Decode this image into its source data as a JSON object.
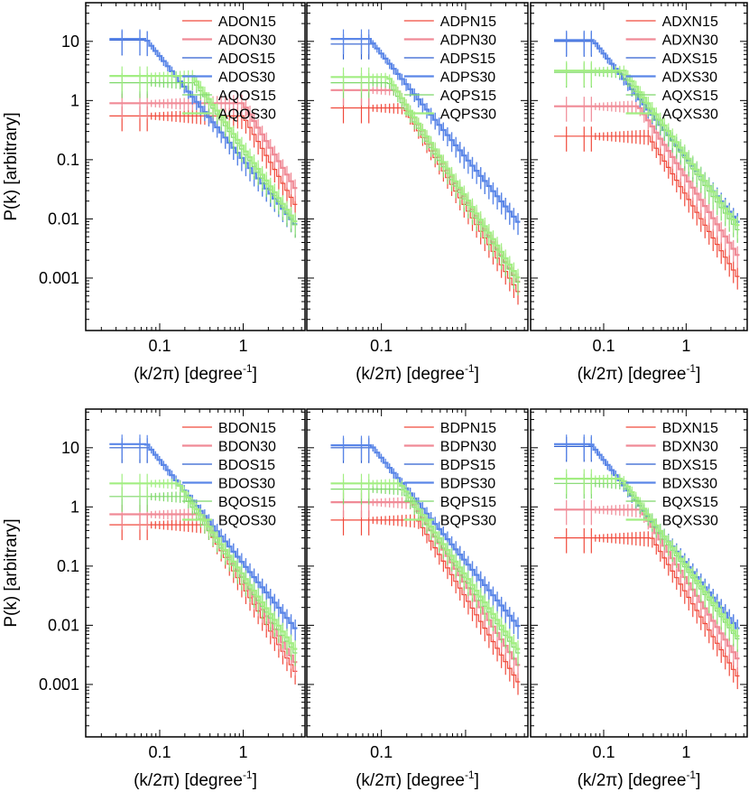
{
  "figure": {
    "ylabel": "P(k) [arbitrary]",
    "xlabel_main": "(k/2π) [degree",
    "xlabel_sup": "-1",
    "xlabel_close": "]"
  },
  "colors": {
    "N15": "#f04a3c",
    "N30": "#f08a96",
    "S15": "#2f5fd0",
    "S30": "#5a86e8",
    "Q15": "#7ed86a",
    "Q30": "#a2ee82"
  },
  "chart_data": [
    {
      "type": "line",
      "panel": "top-left",
      "xscale": "log",
      "yscale": "log",
      "xlim": [
        0.013,
        5.5
      ],
      "ylim": [
        0.00013,
        45
      ],
      "xticks": [
        {
          "v": 0.1,
          "label": "0.1"
        },
        {
          "v": 1,
          "label": "1"
        }
      ],
      "yticks": [
        {
          "v": 10,
          "label": "10"
        },
        {
          "v": 1,
          "label": "1"
        },
        {
          "v": 0.1,
          "label": "0.1"
        },
        {
          "v": 0.01,
          "label": "0.01"
        },
        {
          "v": 0.001,
          "label": "0.001"
        }
      ],
      "legend": "top-right",
      "series": [
        {
          "name": "ADON15",
          "key": "N15",
          "amp": 0.55,
          "low": 0.55,
          "slope": 2.4
        },
        {
          "name": "ADON30",
          "key": "N30",
          "amp": 0.9,
          "low": 0.9,
          "slope": 2.3
        },
        {
          "name": "ADOS15",
          "key": "S15",
          "amp": 0.1,
          "low": 10.5,
          "slope": 1.75
        },
        {
          "name": "ADOS30",
          "key": "S30",
          "amp": 0.1,
          "low": 11,
          "slope": 1.75
        },
        {
          "name": "AQOS15",
          "key": "Q15",
          "amp": 0.14,
          "low": 2.0,
          "slope": 2.0
        },
        {
          "name": "AQOS30",
          "key": "Q30",
          "amp": 0.16,
          "low": 2.6,
          "slope": 2.0
        }
      ]
    },
    {
      "type": "line",
      "panel": "top-center",
      "xscale": "log",
      "yscale": "log",
      "xlim": [
        0.013,
        5.5
      ],
      "ylim": [
        0.00013,
        45
      ],
      "xticks": [
        {
          "v": 0.1,
          "label": "0.1"
        }
      ],
      "yticks": [],
      "legend": "top-right",
      "series": [
        {
          "name": "ADPN15",
          "key": "N15",
          "amp": 0.016,
          "low": 0.75,
          "slope": 2.3
        },
        {
          "name": "ADPN30",
          "key": "N30",
          "amp": 0.022,
          "low": 1.5,
          "slope": 2.25
        },
        {
          "name": "ADPS15",
          "key": "S15",
          "amp": 0.11,
          "low": 9,
          "slope": 1.75
        },
        {
          "name": "ADPS30",
          "key": "S30",
          "amp": 0.11,
          "low": 11,
          "slope": 1.75
        },
        {
          "name": "AQPS15",
          "key": "Q15",
          "amp": 0.02,
          "low": 2.0,
          "slope": 2.2
        },
        {
          "name": "AQPS30",
          "key": "Q30",
          "amp": 0.024,
          "low": 2.5,
          "slope": 2.2
        }
      ]
    },
    {
      "type": "line",
      "panel": "top-right",
      "xscale": "log",
      "yscale": "log",
      "xlim": [
        0.013,
        5.5
      ],
      "ylim": [
        0.00013,
        45
      ],
      "xticks": [
        {
          "v": 0.1,
          "label": "0.1"
        },
        {
          "v": 1,
          "label": "1"
        }
      ],
      "yticks": [],
      "legend": "top-right",
      "series": [
        {
          "name": "ADXN15",
          "key": "N15",
          "amp": 0.025,
          "low": 0.25,
          "slope": 2.2
        },
        {
          "name": "ADXN30",
          "key": "N30",
          "amp": 0.05,
          "low": 0.8,
          "slope": 2.1
        },
        {
          "name": "ADXS15",
          "key": "S15",
          "amp": 0.11,
          "low": 10,
          "slope": 1.75
        },
        {
          "name": "ADXS30",
          "key": "S30",
          "amp": 0.11,
          "low": 10.5,
          "slope": 1.75
        },
        {
          "name": "AQXS15",
          "key": "Q15",
          "amp": 0.1,
          "low": 3.0,
          "slope": 1.9
        },
        {
          "name": "AQXS30",
          "key": "Q30",
          "amp": 0.12,
          "low": 3.2,
          "slope": 1.9
        }
      ]
    },
    {
      "type": "line",
      "panel": "bottom-left",
      "xscale": "log",
      "yscale": "log",
      "xlim": [
        0.013,
        5.5
      ],
      "ylim": [
        0.00013,
        45
      ],
      "xticks": [
        {
          "v": 0.1,
          "label": "0.1"
        },
        {
          "v": 1,
          "label": "1"
        }
      ],
      "yticks": [
        {
          "v": 10,
          "label": "10"
        },
        {
          "v": 1,
          "label": "1"
        },
        {
          "v": 0.1,
          "label": "0.1"
        },
        {
          "v": 0.01,
          "label": "0.01"
        },
        {
          "v": 0.001,
          "label": "0.001"
        }
      ],
      "legend": "top-right",
      "series": [
        {
          "name": "BDON15",
          "key": "N15",
          "amp": 0.045,
          "low": 0.5,
          "slope": 2.3
        },
        {
          "name": "BDON30",
          "key": "N30",
          "amp": 0.06,
          "low": 0.75,
          "slope": 2.25
        },
        {
          "name": "BDOS15",
          "key": "S15",
          "amp": 0.11,
          "low": 10,
          "slope": 1.75
        },
        {
          "name": "BDOS30",
          "key": "S30",
          "amp": 0.11,
          "low": 11.5,
          "slope": 1.75
        },
        {
          "name": "BQOS15",
          "key": "Q15",
          "amp": 0.06,
          "low": 1.5,
          "slope": 2.0
        },
        {
          "name": "BQOS30",
          "key": "Q30",
          "amp": 0.07,
          "low": 2.5,
          "slope": 2.0
        }
      ]
    },
    {
      "type": "line",
      "panel": "bottom-center",
      "xscale": "log",
      "yscale": "log",
      "xlim": [
        0.013,
        5.5
      ],
      "ylim": [
        0.00013,
        45
      ],
      "xticks": [
        {
          "v": 0.1,
          "label": "0.1"
        }
      ],
      "yticks": [],
      "legend": "top-right",
      "series": [
        {
          "name": "BDPN15",
          "key": "N15",
          "amp": 0.03,
          "low": 0.6,
          "slope": 2.3
        },
        {
          "name": "BDPN30",
          "key": "N30",
          "amp": 0.05,
          "low": 1.2,
          "slope": 2.2
        },
        {
          "name": "BDPS15",
          "key": "S15",
          "amp": 0.12,
          "low": 10,
          "slope": 1.75
        },
        {
          "name": "BDPS30",
          "key": "S30",
          "amp": 0.12,
          "low": 11,
          "slope": 1.75
        },
        {
          "name": "BQPS15",
          "key": "Q15",
          "amp": 0.06,
          "low": 2.0,
          "slope": 2.0
        },
        {
          "name": "BQPS30",
          "key": "Q30",
          "amp": 0.07,
          "low": 2.5,
          "slope": 2.0
        }
      ]
    },
    {
      "type": "line",
      "panel": "bottom-right",
      "xscale": "log",
      "yscale": "log",
      "xlim": [
        0.013,
        5.5
      ],
      "ylim": [
        0.00013,
        45
      ],
      "xticks": [
        {
          "v": 0.1,
          "label": "0.1"
        },
        {
          "v": 1,
          "label": "1"
        }
      ],
      "yticks": [],
      "legend": "top-right",
      "series": [
        {
          "name": "BDXN15",
          "key": "N15",
          "amp": 0.035,
          "low": 0.3,
          "slope": 2.25
        },
        {
          "name": "BDXN30",
          "key": "N30",
          "amp": 0.06,
          "low": 0.9,
          "slope": 2.15
        },
        {
          "name": "BDXS15",
          "key": "S15",
          "amp": 0.11,
          "low": 10.5,
          "slope": 1.75
        },
        {
          "name": "BDXS30",
          "key": "S30",
          "amp": 0.11,
          "low": 11.5,
          "slope": 1.75
        },
        {
          "name": "BQXS15",
          "key": "Q15",
          "amp": 0.09,
          "low": 2.5,
          "slope": 1.9
        },
        {
          "name": "BQXS30",
          "key": "Q30",
          "amp": 0.1,
          "low": 3.0,
          "slope": 1.9
        }
      ]
    }
  ]
}
